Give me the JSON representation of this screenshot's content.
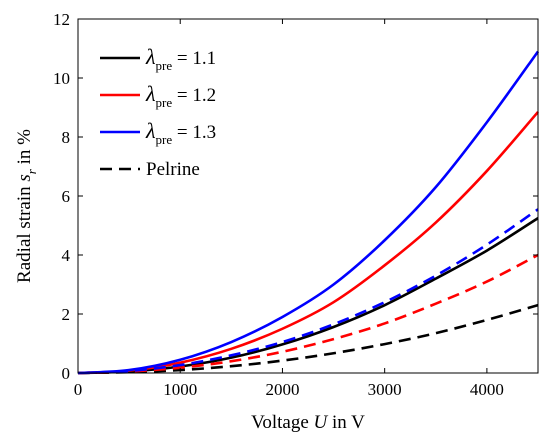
{
  "chart_data": {
    "type": "line",
    "xlabel_prefix": "Voltage ",
    "xlabel_var": "U",
    "xlabel_suffix": " in V",
    "ylabel_prefix": "Radial strain ",
    "ylabel_var": "s",
    "ylabel_sub": "r",
    "ylabel_suffix": " in %",
    "xlim": [
      0,
      4500
    ],
    "ylim": [
      0,
      12
    ],
    "xticks": [
      0,
      1000,
      2000,
      3000,
      4000
    ],
    "yticks": [
      0,
      2,
      4,
      6,
      8,
      10,
      12
    ],
    "grid": false,
    "legend_position": "top-left",
    "series": [
      {
        "name_symbol": "λ",
        "name_sub": "pre",
        "name_value": " = 1.1",
        "color": "#000000",
        "dash": "solid",
        "x": [
          0,
          500,
          1000,
          1500,
          2000,
          2500,
          3000,
          3500,
          4000,
          4500
        ],
        "y": [
          0,
          0.05,
          0.22,
          0.52,
          0.97,
          1.56,
          2.3,
          3.2,
          4.15,
          5.25
        ]
      },
      {
        "name_symbol": "λ",
        "name_sub": "pre",
        "name_value": " = 1.2",
        "color": "#ff0000",
        "dash": "solid",
        "x": [
          0,
          500,
          1000,
          1500,
          2000,
          2500,
          3000,
          3500,
          4000,
          4500
        ],
        "y": [
          0,
          0.08,
          0.35,
          0.82,
          1.5,
          2.4,
          3.65,
          5.1,
          6.85,
          8.85
        ]
      },
      {
        "name_symbol": "λ",
        "name_sub": "pre",
        "name_value": " = 1.3",
        "color": "#0000ff",
        "dash": "solid",
        "x": [
          0,
          500,
          1000,
          1500,
          2000,
          2500,
          3000,
          3500,
          4000,
          4500
        ],
        "y": [
          0,
          0.1,
          0.45,
          1.05,
          1.9,
          3.0,
          4.5,
          6.3,
          8.5,
          10.9
        ]
      },
      {
        "name_symbol": "",
        "name_sub": "",
        "name_value": "Pelrine",
        "color": "#000000",
        "dash": "dashed",
        "x": [
          0,
          500,
          1000,
          1500,
          2000,
          2500,
          3000,
          3500,
          4000,
          4500
        ],
        "y": [
          0,
          0.03,
          0.1,
          0.23,
          0.42,
          0.67,
          0.98,
          1.35,
          1.8,
          2.3
        ]
      },
      {
        "name_symbol": "",
        "name_sub": "",
        "name_value": "",
        "color": "#ff0000",
        "dash": "dashed",
        "x": [
          0,
          500,
          1000,
          1500,
          2000,
          2500,
          3000,
          3500,
          4000,
          4500
        ],
        "y": [
          0,
          0.05,
          0.18,
          0.4,
          0.72,
          1.15,
          1.68,
          2.35,
          3.1,
          4.0
        ]
      },
      {
        "name_symbol": "",
        "name_sub": "",
        "name_value": "",
        "color": "#0000ff",
        "dash": "dashed",
        "x": [
          0,
          500,
          1000,
          1500,
          2000,
          2500,
          3000,
          3500,
          4000,
          4500
        ],
        "y": [
          0,
          0.07,
          0.27,
          0.6,
          1.05,
          1.65,
          2.4,
          3.3,
          4.35,
          5.55
        ]
      }
    ]
  }
}
